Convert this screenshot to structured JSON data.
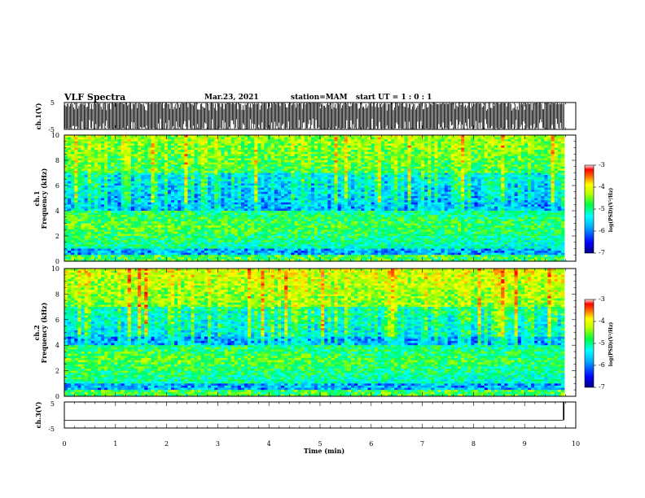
{
  "header": {
    "title": "VLF Spectra",
    "date": "Mar.23, 2021",
    "station": "station=MAM",
    "start": "start UT =  1 : 0 : 1"
  },
  "colors": {
    "ramp": [
      "#000080",
      "#0000ff",
      "#00a0ff",
      "#00ffff",
      "#00ff60",
      "#a0ff00",
      "#ffff00",
      "#ff8000",
      "#ff0000",
      "#ffd0d0"
    ],
    "trace": "#000000"
  },
  "chart_data": [
    {
      "type": "line",
      "name": "ch1-waveform",
      "ylabel": "ch.1(V)",
      "ylim": [
        -5,
        5
      ],
      "yticks": [
        "5",
        "-5"
      ],
      "x_range_min": [
        0,
        10
      ],
      "description": "dense impulsive sferic waveform spanning full range"
    },
    {
      "type": "heatmap",
      "name": "ch1-spectrogram",
      "ylabel": "ch.1 Frequency (kHz)",
      "ylabel_line1": "ch.1",
      "ylabel_line2": "Frequency (kHz)",
      "ylim": [
        0,
        10
      ],
      "yticks": [
        "0",
        "2",
        "4",
        "6",
        "8",
        "10"
      ],
      "x_range_min": [
        0,
        10
      ],
      "colorbar": {
        "label": "log(PSD)(V²/Hz)",
        "range": [
          -7,
          -3
        ],
        "ticks": [
          "-3",
          "-4",
          "-5",
          "-6",
          "-7"
        ]
      }
    },
    {
      "type": "heatmap",
      "name": "ch2-spectrogram",
      "ylabel": "ch.2 Frequency (kHz)",
      "ylabel_line1": "ch.2",
      "ylabel_line2": "Frequency (kHz)",
      "ylim": [
        0,
        10
      ],
      "yticks": [
        "0",
        "2",
        "4",
        "6",
        "8",
        "10"
      ],
      "x_range_min": [
        0,
        10
      ],
      "colorbar": {
        "label": "log(PSD)(V²/Hz)",
        "range": [
          -7,
          -3
        ],
        "ticks": [
          "-3",
          "-4",
          "-5",
          "-6",
          "-7"
        ]
      }
    },
    {
      "type": "line",
      "name": "ch3-waveform",
      "ylabel": "ch.3(V)",
      "ylim": [
        -5,
        5
      ],
      "yticks": [
        "5",
        "-5"
      ],
      "constant_value": -2,
      "step_end_min": 9.75,
      "x_range_min": [
        0,
        10
      ]
    }
  ],
  "xaxis": {
    "label": "Time (min)",
    "ticks": [
      "0",
      "1",
      "2",
      "3",
      "4",
      "5",
      "6",
      "7",
      "8",
      "9",
      "10"
    ],
    "range": [
      0,
      10
    ]
  }
}
